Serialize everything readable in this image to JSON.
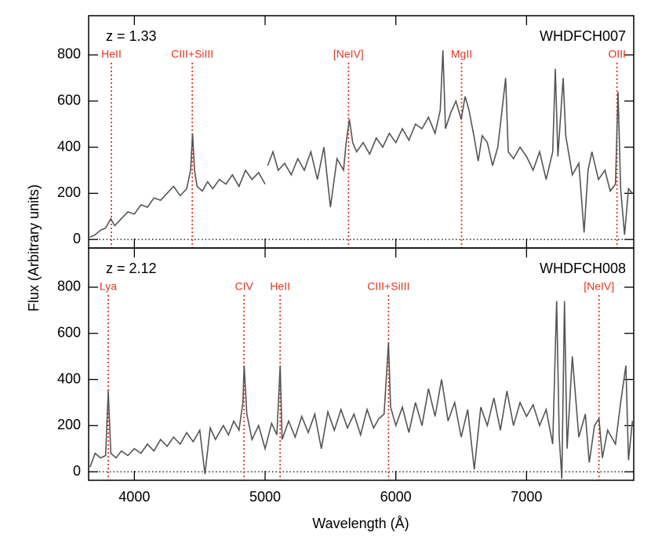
{
  "chart_data": [
    {
      "type": "line",
      "label": "z = 1.33",
      "name": "WHDFCH007",
      "ylabel": "Flux (Arbitrary units)",
      "xlim": [
        3650,
        7820
      ],
      "ylim": [
        -37,
        970
      ],
      "yticks": [
        0,
        200,
        400,
        600,
        800
      ],
      "zero_line": true,
      "color": "#555555",
      "line_color": "#e8321e",
      "x": [
        3660,
        3700,
        3740,
        3780,
        3820,
        3850,
        3900,
        3950,
        4000,
        4050,
        4100,
        4150,
        4200,
        4250,
        4300,
        4350,
        4400,
        4430,
        4445,
        4460,
        4480,
        4520,
        4560,
        4600,
        4650,
        4700,
        4750,
        4800,
        4850,
        4900,
        4950,
        5000,
        5010,
        5020,
        5060,
        5100,
        5150,
        5200,
        5250,
        5300,
        5350,
        5400,
        5450,
        5500,
        5550,
        5600,
        5620,
        5645,
        5670,
        5700,
        5750,
        5800,
        5850,
        5900,
        5950,
        6000,
        6050,
        6100,
        6150,
        6200,
        6250,
        6300,
        6340,
        6360,
        6380,
        6420,
        6460,
        6500,
        6530,
        6560,
        6600,
        6630,
        6660,
        6700,
        6740,
        6780,
        6840,
        6860,
        6900,
        6950,
        7000,
        7050,
        7100,
        7150,
        7200,
        7220,
        7240,
        7280,
        7300,
        7350,
        7400,
        7440,
        7470,
        7500,
        7550,
        7600,
        7640,
        7680,
        7700,
        7720,
        7750,
        7780,
        7810
      ],
      "values": [
        10,
        20,
        40,
        50,
        90,
        60,
        90,
        120,
        110,
        150,
        140,
        180,
        170,
        200,
        230,
        190,
        220,
        300,
        460,
        300,
        230,
        210,
        250,
        220,
        260,
        240,
        280,
        230,
        300,
        260,
        290,
        240,
        null,
        320,
        380,
        300,
        330,
        280,
        350,
        300,
        380,
        260,
        400,
        140,
        350,
        300,
        420,
        520,
        420,
        380,
        420,
        370,
        440,
        400,
        460,
        420,
        480,
        430,
        500,
        480,
        530,
        460,
        560,
        820,
        480,
        550,
        600,
        520,
        620,
        560,
        440,
        340,
        450,
        420,
        320,
        400,
        700,
        380,
        350,
        400,
        360,
        300,
        380,
        260,
        380,
        740,
        360,
        700,
        450,
        280,
        330,
        30,
        300,
        380,
        260,
        300,
        210,
        240,
        640,
        220,
        20,
        220,
        200
      ],
      "lines": [
        {
          "label": "HeII",
          "x": 3824
        },
        {
          "label": "CIII+SiIII",
          "x": 4443
        },
        {
          "label": "[NeIV]",
          "x": 5638
        },
        {
          "label": "MgII",
          "x": 6503
        },
        {
          "label": "OIII",
          "x": 7692
        }
      ]
    },
    {
      "type": "line",
      "label": "z = 2.12",
      "name": "WHDFCH008",
      "xlabel": "Wavelength (Å)",
      "xlim": [
        3650,
        7820
      ],
      "ylim": [
        -37,
        970
      ],
      "yticks": [
        0,
        200,
        400,
        600,
        800
      ],
      "xticks": [
        4000,
        5000,
        6000,
        7000
      ],
      "zero_line": true,
      "color": "#555555",
      "line_color": "#e8321e",
      "x": [
        3660,
        3700,
        3740,
        3780,
        3800,
        3820,
        3860,
        3900,
        3950,
        4000,
        4050,
        4100,
        4150,
        4200,
        4250,
        4300,
        4350,
        4400,
        4450,
        4500,
        4540,
        4580,
        4620,
        4680,
        4720,
        4760,
        4800,
        4830,
        4840,
        4860,
        4900,
        4950,
        5000,
        5050,
        5090,
        5115,
        5130,
        5180,
        5230,
        5280,
        5330,
        5380,
        5430,
        5480,
        5530,
        5580,
        5630,
        5680,
        5730,
        5780,
        5830,
        5870,
        5910,
        5944,
        5960,
        6000,
        6050,
        6100,
        6150,
        6200,
        6250,
        6300,
        6350,
        6400,
        6450,
        6500,
        6550,
        6600,
        6650,
        6700,
        6750,
        6800,
        6850,
        6900,
        6950,
        7000,
        7050,
        7100,
        7150,
        7200,
        7230,
        7250,
        7270,
        7290,
        7310,
        7350,
        7400,
        7450,
        7480,
        7520,
        7554,
        7580,
        7620,
        7680,
        7720,
        7760,
        7780,
        7810
      ],
      "values": [
        20,
        80,
        60,
        70,
        350,
        80,
        60,
        90,
        70,
        100,
        80,
        120,
        90,
        140,
        110,
        150,
        120,
        170,
        130,
        180,
        -10,
        190,
        140,
        200,
        160,
        220,
        180,
        300,
        460,
        250,
        140,
        200,
        100,
        210,
        160,
        460,
        140,
        220,
        150,
        240,
        170,
        250,
        100,
        260,
        180,
        270,
        190,
        250,
        160,
        270,
        190,
        230,
        250,
        560,
        280,
        200,
        280,
        170,
        300,
        200,
        360,
        240,
        400,
        220,
        300,
        150,
        270,
        10,
        280,
        200,
        320,
        180,
        350,
        200,
        300,
        240,
        290,
        200,
        270,
        120,
        740,
        150,
        -30,
        740,
        100,
        500,
        150,
        250,
        40,
        200,
        230,
        60,
        180,
        120,
        300,
        460,
        50,
        220
      ],
      "lines": [
        {
          "label": "Lya",
          "x": 3800
        },
        {
          "label": "CIV",
          "x": 4839
        },
        {
          "label": "HeII",
          "x": 5115
        },
        {
          "label": "CIII+SiIII",
          "x": 5944
        },
        {
          "label": "[NeIV]",
          "x": 7554
        }
      ]
    }
  ]
}
